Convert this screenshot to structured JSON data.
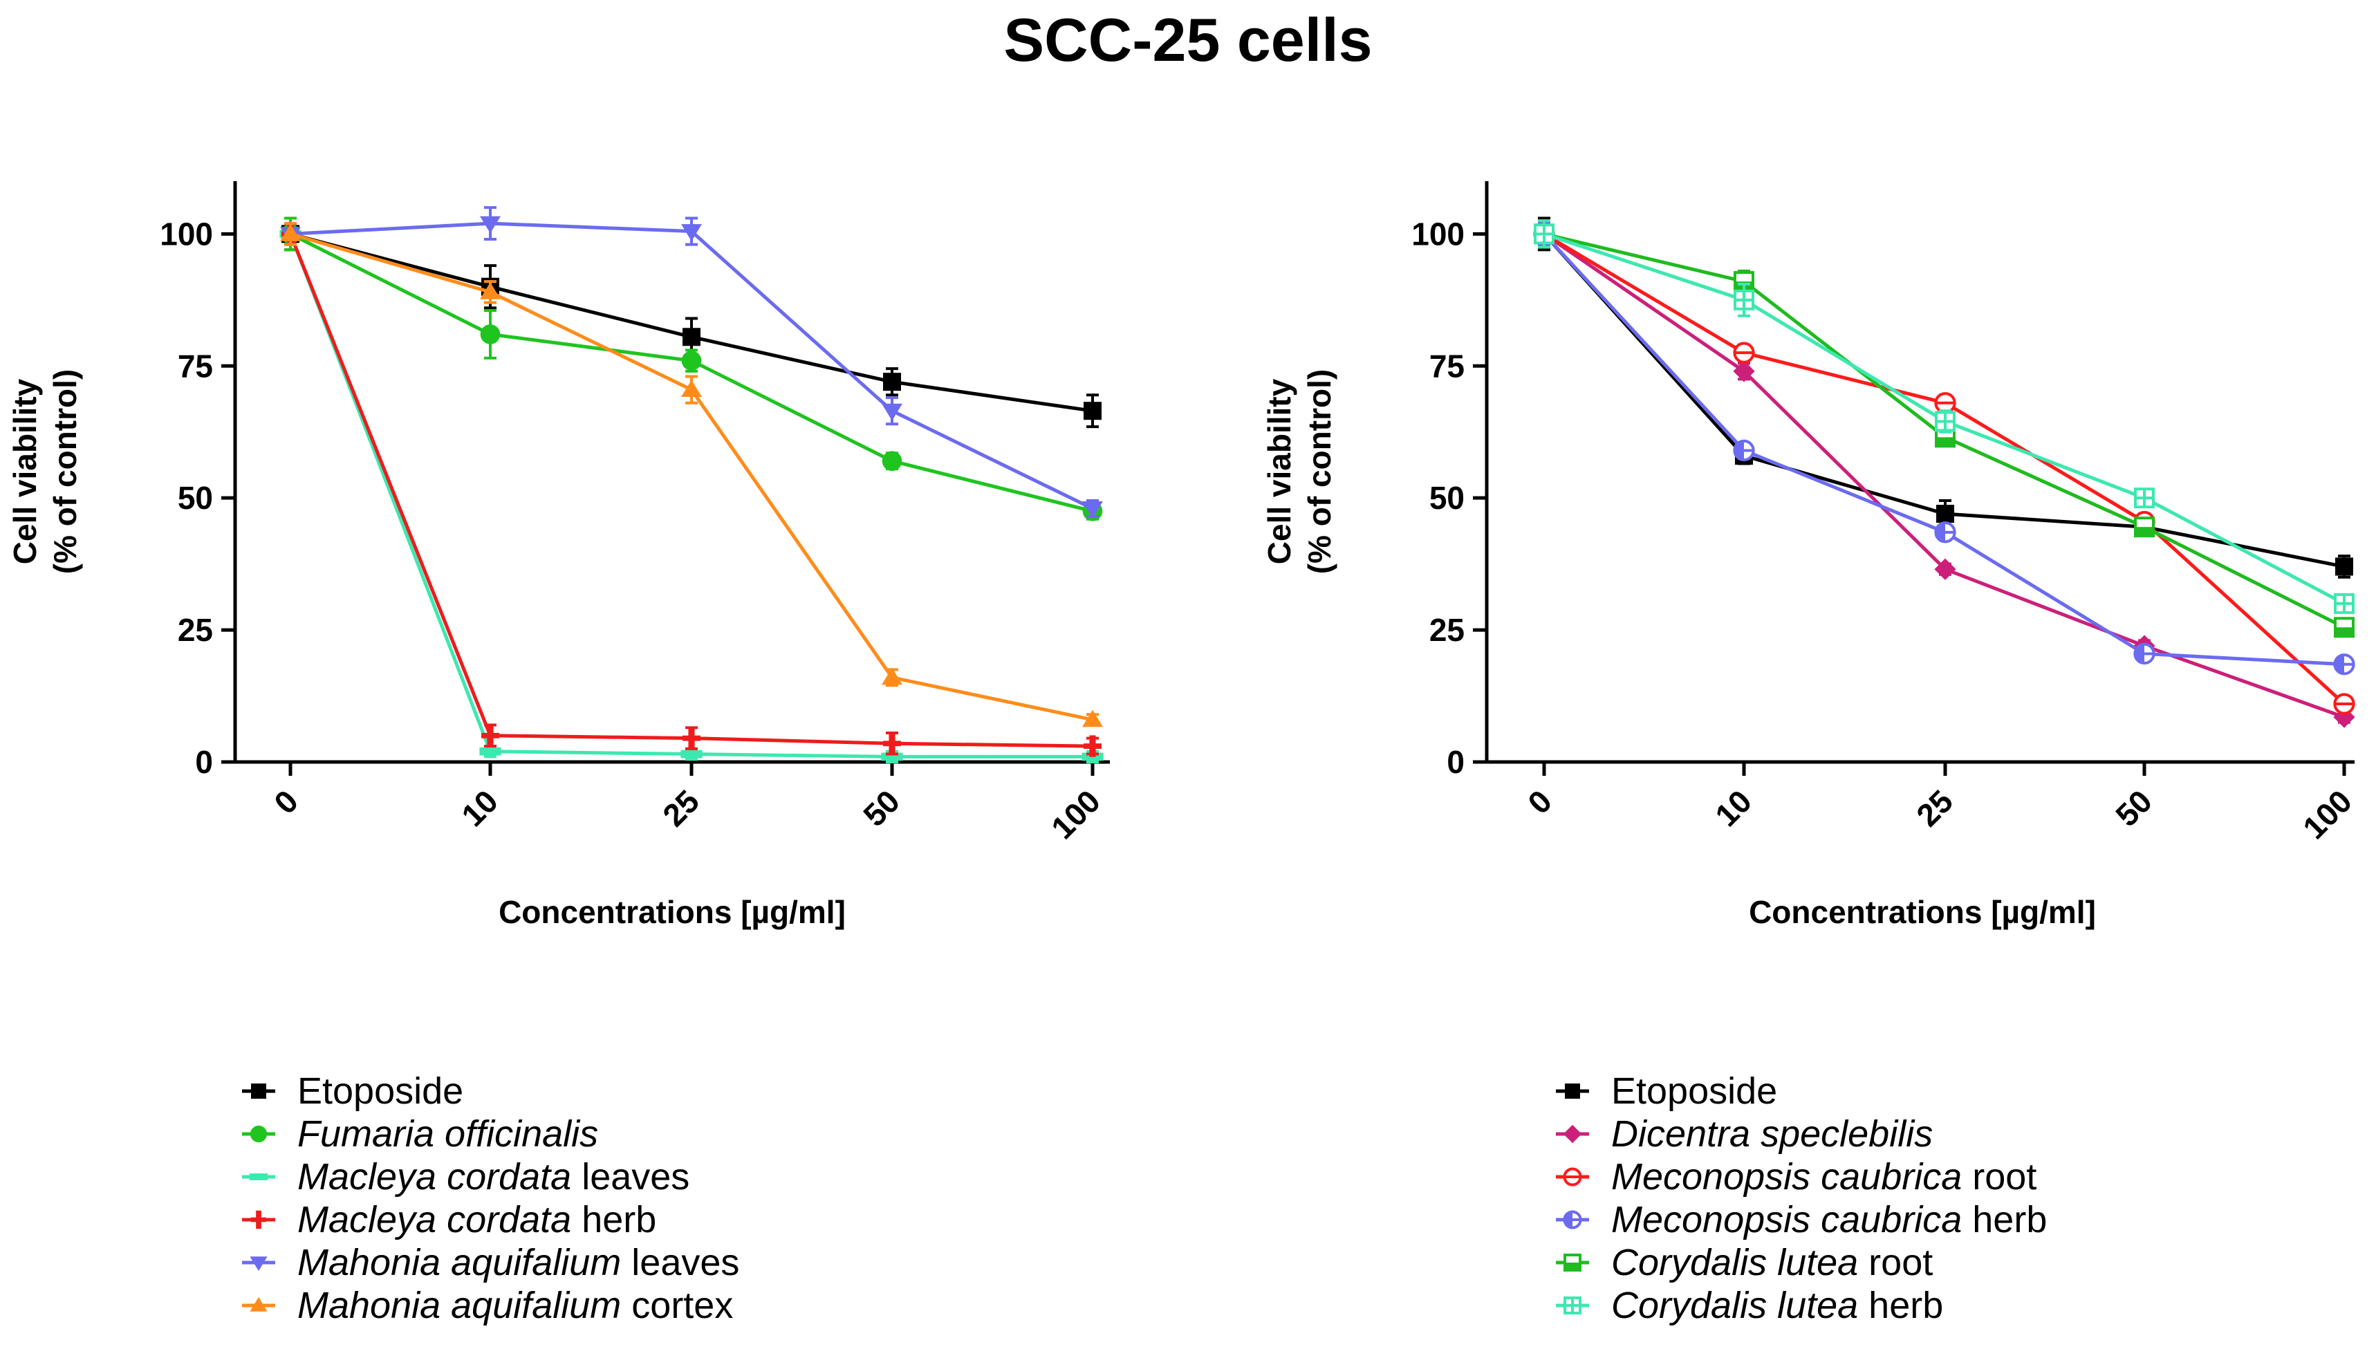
{
  "title": "SCC-25 cells",
  "chart_data": [
    {
      "type": "line",
      "panel": "left",
      "xlabel": "Concentrations [µg/ml]",
      "ylabel_line1": "Cell viability",
      "ylabel_line2": "(% of control)",
      "categories": [
        "0",
        "10",
        "25",
        "50",
        "100"
      ],
      "ylim": [
        0,
        110
      ],
      "yticks": [
        "0",
        "25",
        "50",
        "75",
        "100"
      ],
      "series": [
        {
          "name": "Etoposide",
          "species": "",
          "part": "",
          "color": "#000000",
          "marker": "square",
          "values": [
            100,
            90,
            80.5,
            72,
            66.5
          ],
          "errors": [
            3,
            4,
            3.5,
            2.5,
            3
          ]
        },
        {
          "name": "Fumaria officinalis",
          "species": "Fumaria officinalis",
          "part": "",
          "color": "#1fc41f",
          "marker": "circle",
          "values": [
            100,
            81,
            76,
            57,
            47.5
          ],
          "errors": [
            3,
            4.5,
            2,
            1.5,
            1.5
          ]
        },
        {
          "name": "Macleya cordata leaves",
          "species": "Macleya cordata",
          "part": "leaves",
          "color": "#3de8b0",
          "marker": "dash",
          "values": [
            100,
            2,
            1.5,
            1,
            1
          ],
          "errors": [
            2,
            1,
            1,
            1,
            1
          ]
        },
        {
          "name": "Macleya cordata herb",
          "species": "Macleya cordata",
          "part": "herb",
          "color": "#ee1c1c",
          "marker": "plus",
          "values": [
            100,
            5,
            4.5,
            3.5,
            3
          ],
          "errors": [
            2,
            2,
            2,
            2,
            1.5
          ]
        },
        {
          "name": "Mahonia aquifalium leaves",
          "species": "Mahonia aquifalium",
          "part": "leaves",
          "color": "#6b6bf0",
          "marker": "triangle-down",
          "values": [
            100,
            102,
            100.5,
            66.5,
            48
          ],
          "errors": [
            2,
            3,
            2.5,
            2.5,
            1.5
          ]
        },
        {
          "name": "Mahonia aquifalium cortex",
          "species": "Mahonia aquifalium",
          "part": "cortex",
          "color": "#ff8c1a",
          "marker": "triangle-up",
          "values": [
            100,
            89,
            70.5,
            16,
            8
          ],
          "errors": [
            2,
            2,
            2.5,
            1.5,
            1
          ]
        }
      ]
    },
    {
      "type": "line",
      "panel": "right",
      "xlabel": "Concentrations [µg/ml]",
      "ylabel_line1": "Cell viability",
      "ylabel_line2": "(% of control)",
      "categories": [
        "0",
        "10",
        "25",
        "50",
        "100"
      ],
      "ylim": [
        0,
        110
      ],
      "yticks": [
        "0",
        "25",
        "50",
        "75",
        "100"
      ],
      "series": [
        {
          "name": "Etoposide",
          "species": "",
          "part": "",
          "color": "#000000",
          "marker": "square",
          "values": [
            100,
            58,
            47,
            44.5,
            37
          ],
          "errors": [
            3,
            1.5,
            2.5,
            1.5,
            2
          ]
        },
        {
          "name": "Dicentra speclebilis",
          "species": "Dicentra speclebilis",
          "part": "",
          "color": "#cc1f7a",
          "marker": "diamond",
          "values": [
            100,
            74,
            36.5,
            22,
            8.5
          ],
          "errors": [
            2,
            1.5,
            1,
            1,
            1
          ]
        },
        {
          "name": "Meconopsis caubrica root",
          "species": "Meconopsis caubrica",
          "part": "root",
          "color": "#ff1a1a",
          "marker": "circle-half-open",
          "values": [
            100,
            77.5,
            68,
            45.5,
            11
          ],
          "errors": [
            2,
            1.5,
            1.5,
            1.5,
            1
          ]
        },
        {
          "name": "Meconopsis caubrica herb",
          "species": "Meconopsis caubrica",
          "part": "herb",
          "color": "#6b6bf0",
          "marker": "circle-half-left",
          "values": [
            100,
            59,
            43.5,
            20.5,
            18.5
          ],
          "errors": [
            2,
            1.5,
            1.5,
            1,
            1
          ]
        },
        {
          "name": "Corydalis lutea root",
          "species": "Corydalis lutea",
          "part": "root",
          "color": "#1fbb1f",
          "marker": "square-half-bottom",
          "values": [
            100,
            91,
            61.5,
            44.5,
            25.5
          ],
          "errors": [
            2.5,
            2,
            1.5,
            1.5,
            1.5
          ]
        },
        {
          "name": "Corydalis lutea herb",
          "species": "Corydalis lutea",
          "part": "herb",
          "color": "#3de8b0",
          "marker": "square-half-open",
          "values": [
            100,
            87.5,
            64.5,
            50,
            30
          ],
          "errors": [
            2.5,
            3,
            2,
            1.5,
            1.5
          ]
        }
      ]
    }
  ]
}
